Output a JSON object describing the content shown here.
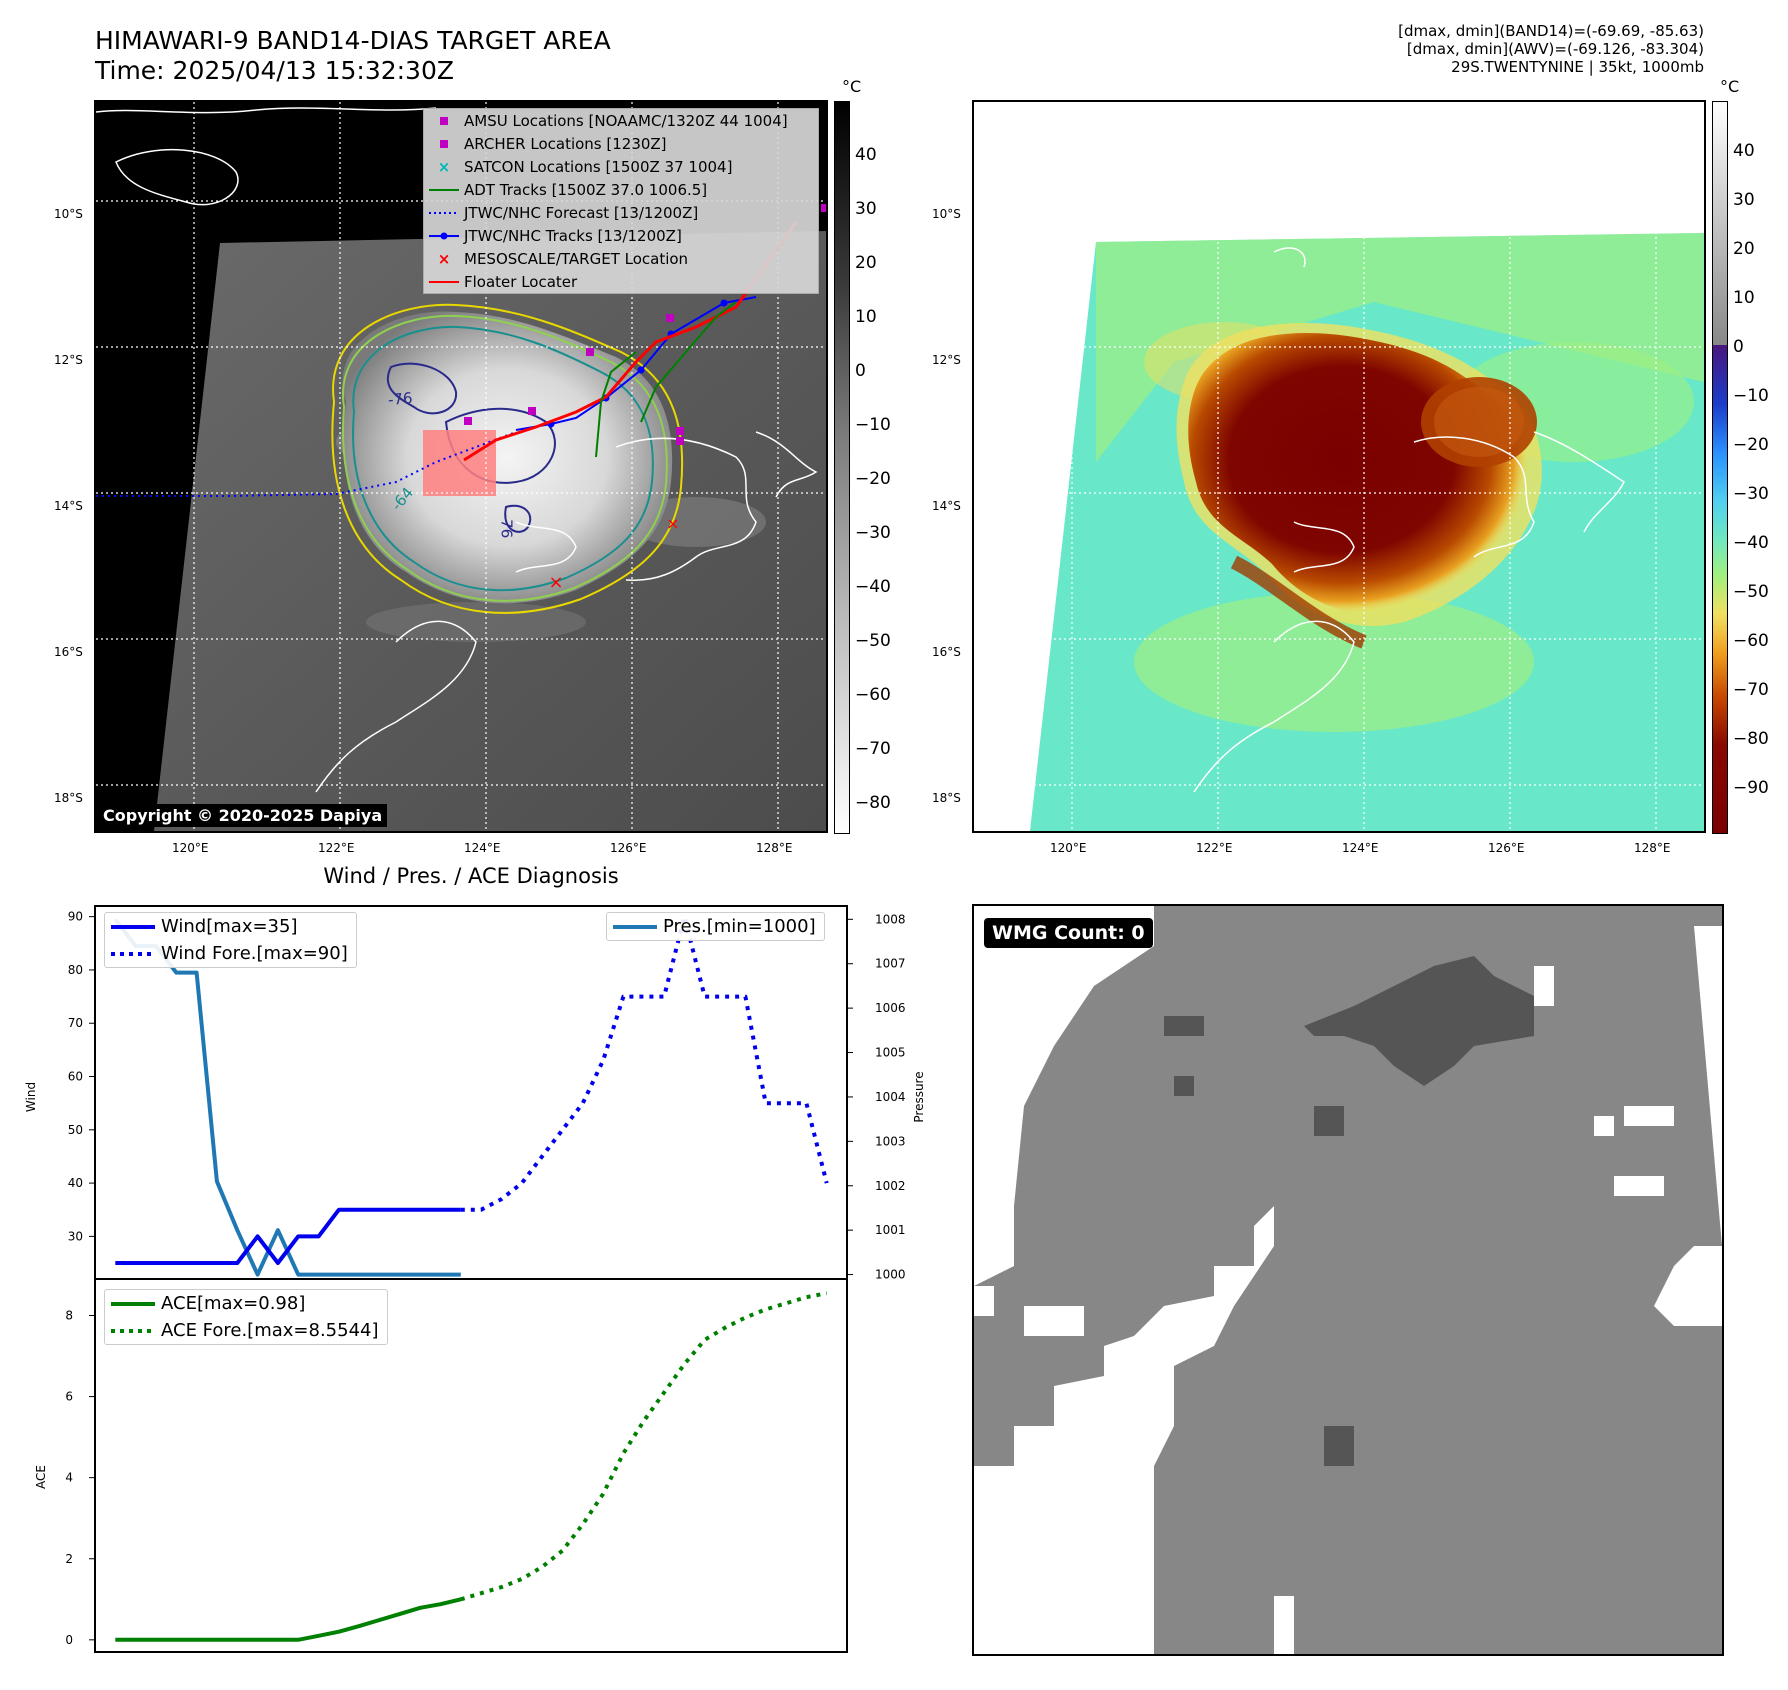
{
  "header": {
    "title": "HIMAWARI-9 BAND14-DIAS TARGET AREA",
    "time": "Time: 2025/04/13 15:32:30Z",
    "info_line1": "[dmax, dmin](BAND14)=(-69.69, -85.63)",
    "info_line2": "[dmax, dmin](AWV)=(-69.126, -83.304)",
    "info_line3": "29S.TWENTYNINE | 35kt, 1000mb"
  },
  "map_axes": {
    "lat_ticks": [
      "10°S",
      "12°S",
      "14°S",
      "16°S",
      "18°S"
    ],
    "lon_ticks": [
      "120°E",
      "122°E",
      "124°E",
      "126°E",
      "128°E"
    ]
  },
  "ir_panel": {
    "copyright": "Copyright © 2020-2025 Dapiya",
    "colorbar_unit": "°C",
    "colorbar_ticks": [
      "40",
      "30",
      "20",
      "10",
      "0",
      "−10",
      "−20",
      "−30",
      "−40",
      "−50",
      "−60",
      "−70",
      "−80"
    ],
    "contour_labels": [
      "-76",
      "-64",
      "-76"
    ],
    "legend": [
      {
        "label": "AMSU Locations [NOAAMC/1320Z 44 1004]",
        "marker": "square",
        "color": "#c000c0"
      },
      {
        "label": "ARCHER Locations [1230Z]",
        "marker": "square",
        "color": "#c000c0"
      },
      {
        "label": "SATCON Locations [1500Z 37 1004]",
        "marker": "x",
        "color": "#00b8b8"
      },
      {
        "label": "ADT Tracks [1500Z 37.0 1006.5]",
        "marker": "line",
        "color": "#008000"
      },
      {
        "label": "JTWC/NHC Forecast [13/1200Z]",
        "marker": "dotted",
        "color": "#0000ff"
      },
      {
        "label": "JTWC/NHC Tracks [13/1200Z]",
        "marker": "line-dot",
        "color": "#0000ff"
      },
      {
        "label": "MESOSCALE/TARGET Location",
        "marker": "x",
        "color": "#ff0000"
      },
      {
        "label": "Floater Locater",
        "marker": "line",
        "color": "#ff0000"
      }
    ]
  },
  "awv_panel": {
    "colorbar_unit": "°C",
    "colorbar_ticks": [
      "40",
      "30",
      "20",
      "10",
      "0",
      "−10",
      "−20",
      "−30",
      "−40",
      "−50",
      "−60",
      "−70",
      "−80",
      "−90"
    ]
  },
  "diag_panel": {
    "title": "Wind / Pres. / ACE Diagnosis"
  },
  "wmg_panel": {
    "badge": "WMG Count: 0"
  },
  "chart_data": [
    {
      "type": "line",
      "title": "Wind / Pres. / ACE Diagnosis",
      "ylabel": "Wind",
      "ylabel_right": "Pressure",
      "ylim": [
        22,
        92
      ],
      "ylim_right": [
        999.9,
        1008.3
      ],
      "yticks": [
        30,
        40,
        50,
        60,
        70,
        80,
        90
      ],
      "yticks_right": [
        1000,
        1001,
        1002,
        1003,
        1004,
        1005,
        1006,
        1007,
        1008
      ],
      "xlim": [
        -1,
        36
      ],
      "series": [
        {
          "name": "Wind[max=35]",
          "axis": "left",
          "style": "solid",
          "color": "#0000ee",
          "x": [
            0,
            1,
            2,
            3,
            4,
            5,
            6,
            7,
            8,
            9,
            10,
            11,
            12,
            13,
            14,
            15,
            16,
            17
          ],
          "y": [
            25,
            25,
            25,
            25,
            25,
            25,
            25,
            30,
            25,
            30,
            30,
            35,
            35,
            35,
            35,
            35,
            35,
            35
          ]
        },
        {
          "name": "Wind Fore.[max=90]",
          "axis": "left",
          "style": "dotted",
          "color": "#0000ee",
          "x": [
            17,
            18,
            19,
            20,
            21,
            22,
            23,
            24,
            25,
            26,
            27,
            28,
            29,
            30,
            31,
            32,
            33,
            34,
            35
          ],
          "y": [
            35,
            35,
            37,
            40,
            45,
            50,
            55,
            63,
            75,
            75,
            75,
            90,
            75,
            75,
            75,
            55,
            55,
            55,
            40
          ]
        },
        {
          "name": "Pres.[min=1000]",
          "axis": "right",
          "style": "solid",
          "color": "#1f77b4",
          "x": [
            0,
            1,
            2,
            3,
            4,
            5,
            6,
            7,
            8,
            9,
            10,
            11,
            12,
            13,
            14,
            15,
            16,
            17
          ],
          "y": [
            1008,
            1007.4,
            1007.4,
            1006.8,
            1006.8,
            1002.1,
            1001,
            1000,
            1001,
            1000,
            1000,
            1000,
            1000,
            1000,
            1000,
            1000,
            1000,
            1000
          ]
        }
      ]
    },
    {
      "type": "line",
      "ylabel": "ACE",
      "ylim": [
        -0.3,
        8.9
      ],
      "yticks": [
        0,
        2,
        4,
        6,
        8
      ],
      "xlim": [
        -1,
        36
      ],
      "series": [
        {
          "name": "ACE[max=0.98]",
          "style": "solid",
          "color": "#008000",
          "x": [
            0,
            1,
            2,
            3,
            4,
            5,
            6,
            7,
            8,
            9,
            10,
            11,
            12,
            13,
            14,
            15,
            16,
            17
          ],
          "y": [
            0,
            0,
            0,
            0,
            0,
            0,
            0,
            0,
            0,
            0,
            0.1,
            0.2,
            0.34,
            0.49,
            0.64,
            0.79,
            0.88,
            1.0
          ]
        },
        {
          "name": "ACE Fore.[max=8.5544]",
          "style": "dotted",
          "color": "#008000",
          "x": [
            17,
            18,
            19,
            20,
            21,
            22,
            23,
            24,
            25,
            26,
            27,
            28,
            29,
            30,
            31,
            32,
            33,
            34,
            35
          ],
          "y": [
            1.0,
            1.15,
            1.3,
            1.5,
            1.8,
            2.2,
            2.85,
            3.6,
            4.6,
            5.4,
            6.1,
            6.8,
            7.4,
            7.7,
            7.95,
            8.15,
            8.3,
            8.45,
            8.55
          ]
        }
      ]
    }
  ]
}
